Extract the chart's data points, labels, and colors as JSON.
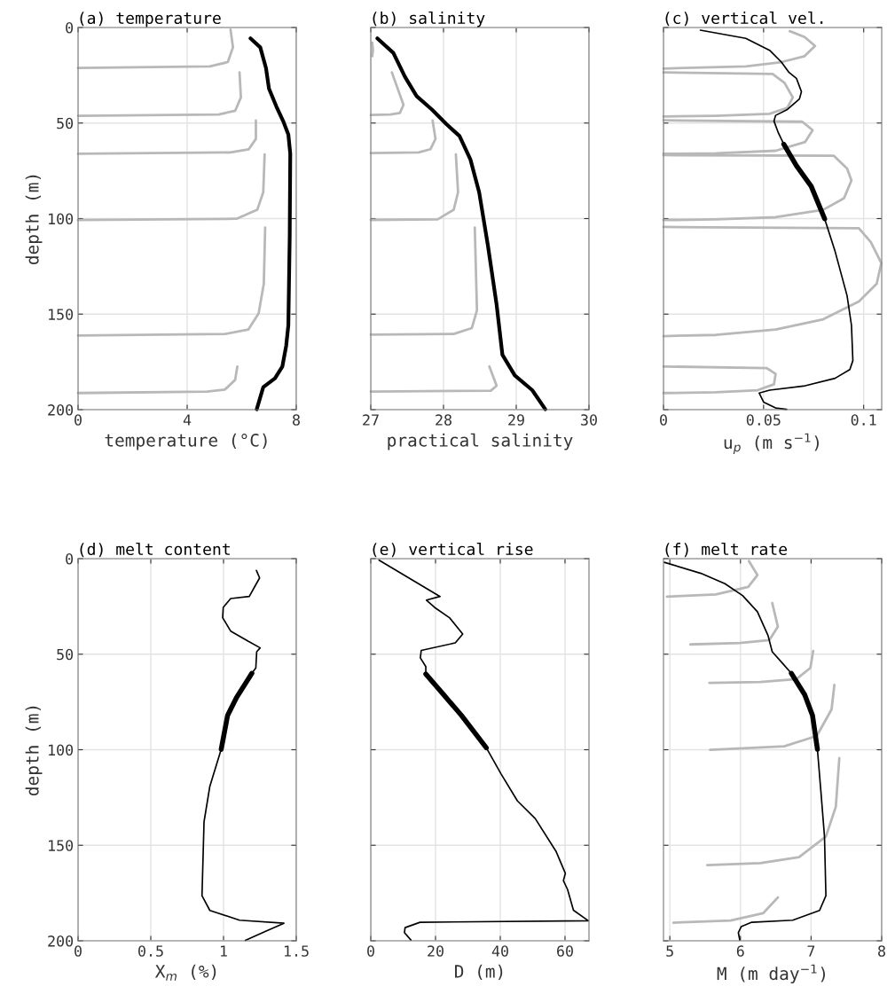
{
  "chart_data": [
    {
      "type": "line",
      "title": "(a) temperature",
      "xlabel": "temperature (°C)",
      "ylabel": "depth (m)",
      "xlim": [
        0,
        8
      ],
      "xticks": [
        0,
        4,
        8
      ],
      "ylim": [
        200,
        0
      ],
      "yticks": [
        0,
        50,
        100,
        150,
        200
      ],
      "grid": true,
      "series": [
        {
          "color": "#b8b8b8",
          "x": [
            5.59,
            5.68,
            5.49,
            4.83,
            0
          ],
          "values": [
            1.1,
            10.4,
            18.1,
            20.4,
            21.2
          ]
        },
        {
          "color": "#b8b8b8",
          "x": [
            5.92,
            5.97,
            5.76,
            5.16,
            0
          ],
          "values": [
            23.5,
            36.6,
            43.6,
            45.5,
            46.2
          ]
        },
        {
          "color": "#b8b8b8",
          "x": [
            6.52,
            6.52,
            6.26,
            5.59,
            0
          ],
          "values": [
            48.7,
            58.3,
            63.7,
            65.4,
            66.1
          ]
        },
        {
          "color": "#b8b8b8",
          "x": [
            6.84,
            6.79,
            6.57,
            5.81,
            0
          ],
          "values": [
            66.4,
            86.2,
            95.4,
            100.1,
            100.8
          ]
        },
        {
          "color": "#b8b8b8",
          "x": [
            6.86,
            6.81,
            6.62,
            6.24,
            5.38,
            0
          ],
          "values": [
            104.7,
            134.1,
            149.6,
            158.1,
            160.4,
            161.2
          ]
        },
        {
          "color": "#b8b8b8",
          "x": [
            5.84,
            5.76,
            5.38,
            4.73,
            0
          ],
          "values": [
            177.4,
            184.4,
            189.5,
            190.5,
            191.3
          ]
        },
        {
          "color": "#000000",
          "x": [
            6.32,
            6.68,
            6.89,
            7.0,
            7.27,
            7.52,
            7.71,
            7.78,
            7.76,
            7.71,
            7.63,
            7.49,
            7.22,
            6.79,
            6.55
          ],
          "values": [
            5.7,
            10.4,
            21.2,
            32.0,
            41.3,
            49.0,
            56.0,
            66.0,
            109,
            155.8,
            166.6,
            177.4,
            183.6,
            188.2,
            199.8
          ]
        }
      ]
    },
    {
      "type": "line",
      "title": "(b) salinity",
      "xlabel": "practical salinity",
      "xlim": [
        27,
        30
      ],
      "xticks": [
        27,
        28,
        29,
        30
      ],
      "ylim": [
        200,
        0
      ],
      "yticks": [
        0,
        50,
        100,
        150,
        200
      ],
      "tick_labels": "x",
      "grid": true,
      "series": [
        {
          "color": "#b8b8b8",
          "x": [
            27.29,
            27.45,
            27.4,
            27.27,
            27.0
          ],
          "values": [
            23.5,
            40.5,
            44.7,
            45.5,
            45.8
          ]
        },
        {
          "color": "#b8b8b8",
          "x": [
            27.85,
            27.89,
            27.82,
            27.66,
            27.0
          ],
          "values": [
            48.7,
            58.3,
            63.7,
            65.4,
            65.7
          ]
        },
        {
          "color": "#b8b8b8",
          "x": [
            28.17,
            28.2,
            28.14,
            27.92,
            27.0
          ],
          "values": [
            66.4,
            86.2,
            95.4,
            100.4,
            100.7
          ]
        },
        {
          "color": "#b8b8b8",
          "x": [
            28.43,
            28.46,
            28.39,
            28.14,
            27.0
          ],
          "values": [
            104.7,
            148,
            157.3,
            160.4,
            160.7
          ]
        },
        {
          "color": "#b8b8b8",
          "x": [
            28.63,
            28.73,
            28.65,
            27.0
          ],
          "values": [
            177.4,
            187.5,
            190.1,
            190.5
          ]
        },
        {
          "color": "#b8b8b8",
          "x": [
            27.02,
            27.03,
            27.02
          ],
          "values": [
            8.0,
            11.9,
            15.0
          ]
        },
        {
          "color": "#000000",
          "x": [
            27.09,
            27.31,
            27.47,
            27.63,
            27.84,
            28.04,
            28.22,
            28.37,
            28.49,
            28.61,
            28.73,
            28.81,
            28.98,
            29.22,
            29.4
          ],
          "values": [
            5.7,
            13.3,
            25.8,
            35.9,
            42.9,
            50.6,
            56.8,
            69.1,
            86.2,
            114.0,
            145,
            171.3,
            182.1,
            189.8,
            199.8
          ]
        }
      ]
    },
    {
      "type": "line",
      "title": "(c) vertical vel.",
      "xlabel": "u$_{p}$ (m s$^{−1}$)",
      "xlim": [
        0,
        0.109
      ],
      "xticks": [
        0,
        0.05,
        0.1
      ],
      "ylim": [
        200,
        0
      ],
      "yticks": [
        0,
        50,
        100,
        150,
        200
      ],
      "tick_labels": "x",
      "grid": true,
      "series": [
        {
          "color": "#b8b8b8",
          "x": [
            0.0631,
            0.0705,
            0.0757,
            0.0705,
            0.0589,
            0.0411,
            0
          ],
          "values": [
            1.9,
            5.0,
            9.6,
            15.0,
            18.1,
            20.4,
            21.5
          ]
        },
        {
          "color": "#b8b8b8",
          "x": [
            0,
            0.0545,
            0.0604,
            0.0646,
            0.0619,
            0.053,
            0.0262,
            0
          ],
          "values": [
            23.5,
            24.3,
            28.9,
            36.6,
            42.0,
            45.2,
            46.2,
            46.6
          ]
        },
        {
          "color": "#b8b8b8",
          "x": [
            0,
            0.0693,
            0.0745,
            0.0708,
            0.056,
            0.0262,
            0
          ],
          "values": [
            48.6,
            49.3,
            53.7,
            59.9,
            64.5,
            65.8,
            66.1
          ]
        },
        {
          "color": "#b8b8b8",
          "x": [
            0,
            0.085,
            0.0917,
            0.0939,
            0.0902,
            0.0798,
            0.056,
            0.0262,
            0
          ],
          "values": [
            66.8,
            67.1,
            73.8,
            80.0,
            89.3,
            95.4,
            99.3,
            100.4,
            100.8
          ]
        },
        {
          "color": "#b8b8b8",
          "x": [
            0,
            0.0976,
            0.1036,
            0.1088,
            0.1065,
            0.0976,
            0.0798,
            0.056,
            0.0262,
            0
          ],
          "values": [
            104.4,
            105.0,
            112.4,
            123.3,
            134.1,
            143.4,
            152.7,
            158.1,
            160.9,
            161.5
          ]
        },
        {
          "color": "#b8b8b8",
          "x": [
            0,
            0.0515,
            0.056,
            0.0552,
            0.047,
            0.0262,
            0
          ],
          "values": [
            177.4,
            178.2,
            181.3,
            186.7,
            189.8,
            190.9,
            191.3
          ]
        },
        {
          "color": "#000000",
          "x": [
            0.0184,
            0.0411,
            0.053,
            0.0589,
            0.0627,
            0.0664,
            0.0689,
            0.0679,
            0.0619,
            0.056,
            0.0552,
            0.0574,
            0.0601
          ],
          "values": [
            1.4,
            5.7,
            11.9,
            18.1,
            23.5,
            26.6,
            33.6,
            37.4,
            42.9,
            46.0,
            49.0,
            55.2,
            61.1
          ]
        },
        {
          "color": "#000000",
          "x": [
            0.0601,
            0.0664,
            0.0738,
            0.0805
          ],
          "values": [
            61.1,
            72.3,
            83.1,
            100.1
          ]
        },
        {
          "color": "#000000",
          "x": [
            0.0805,
            0.0857,
            0.0917,
            0.0939,
            0.0946,
            0.0931,
            0.0857,
            0.0708,
            0.053,
            0.0478,
            0.05,
            0.056,
            0.0615
          ],
          "values": [
            100.1,
            117.1,
            140.3,
            155.8,
            174.3,
            179.0,
            183.6,
            187.5,
            189.8,
            191.3,
            196.0,
            199.1,
            199.8
          ]
        }
      ]
    },
    {
      "type": "line",
      "title": "(d) melt content",
      "xlabel": "X$_{m}$ (%)",
      "ylabel": "depth (m)",
      "xlim": [
        0,
        1.5
      ],
      "xticks": [
        0,
        0.5,
        1,
        1.5
      ],
      "ylim": [
        200,
        0
      ],
      "yticks": [
        0,
        50,
        100,
        150,
        200
      ],
      "grid": true,
      "series": [
        {
          "color": "#000000",
          "x": [
            1.226,
            1.248,
            1.177,
            1.049,
            0.998,
            0.994,
            1.049,
            1.171,
            1.252,
            1.228,
            1.222,
            1.195
          ],
          "values": [
            6.2,
            10.1,
            19.8,
            20.9,
            25.5,
            30.9,
            37.9,
            43.3,
            46.7,
            48.7,
            57.2,
            60.0
          ]
        },
        {
          "color": "#000000",
          "x": [
            1.195,
            1.089,
            1.028,
            0.984
          ],
          "values": [
            60.0,
            72.7,
            82.0,
            99.8
          ]
        },
        {
          "color": "#000000",
          "x": [
            0.984,
            0.906,
            0.866,
            0.852,
            0.906,
            1.11,
            1.415,
            1.293,
            1.15
          ],
          "values": [
            99.8,
            119.1,
            137.7,
            176.4,
            184.1,
            189.2,
            190.8,
            194.9,
            199.8
          ]
        }
      ]
    },
    {
      "type": "line",
      "title": "(e) vertical rise",
      "xlabel": "D (m)",
      "xlim": [
        0,
        67.4
      ],
      "xticks": [
        0,
        20,
        40,
        60
      ],
      "ylim": [
        200,
        0
      ],
      "yticks": [
        0,
        50,
        100,
        150,
        200
      ],
      "tick_labels": "x",
      "grid": true,
      "series": [
        {
          "color": "#000000",
          "x": [
            2.56,
            21.4,
            17.2,
            19.7,
            24.3,
            28.4,
            26.1,
            15.6,
            15.3,
            17.0,
            17.0
          ],
          "values": [
            0.8,
            19.8,
            21.7,
            25.5,
            30.9,
            39.4,
            44.1,
            48.0,
            51.9,
            56.5,
            60.4
          ]
        },
        {
          "color": "#000000",
          "x": [
            17.0,
            22.5,
            28.0,
            35.7
          ],
          "values": [
            60.4,
            71.2,
            82.0,
            99.0
          ]
        },
        {
          "color": "#000000",
          "x": [
            35.7,
            40.3,
            45.3,
            50.8,
            57.2,
            60.1,
            59.5,
            60.8,
            62.6,
            67.2,
            15.2,
            10.6,
            10.4,
            12.4
          ],
          "values": [
            99.0,
            112.8,
            126.8,
            136.0,
            153.1,
            164.7,
            168.5,
            173.2,
            184.0,
            189.5,
            190.3,
            193.1,
            195.7,
            199.6
          ]
        }
      ]
    },
    {
      "type": "line",
      "title": "(f) melt rate",
      "xlabel": "M (m day$^{−1}$)",
      "xlim": [
        4.91,
        8
      ],
      "xticks": [
        5,
        6,
        7,
        8
      ],
      "ylim": [
        200,
        0
      ],
      "yticks": [
        0,
        50,
        100,
        150,
        200
      ],
      "tick_labels": "x",
      "grid": true,
      "series": [
        {
          "color": "#b8b8b8",
          "x": [
            6.12,
            6.24,
            6.11,
            5.65,
            4.96
          ],
          "values": [
            1.3,
            8.6,
            14.8,
            18.7,
            19.9
          ]
        },
        {
          "color": "#b8b8b8",
          "x": [
            6.45,
            6.53,
            6.41,
            5.99,
            5.29
          ],
          "values": [
            23.2,
            35.6,
            42.6,
            44.1,
            44.9
          ]
        },
        {
          "color": "#b8b8b8",
          "x": [
            7.03,
            6.99,
            6.79,
            6.28,
            5.56
          ],
          "values": [
            48.3,
            57.2,
            63.1,
            64.6,
            65.0
          ]
        },
        {
          "color": "#b8b8b8",
          "x": [
            7.33,
            7.29,
            7.08,
            6.62,
            5.57
          ],
          "values": [
            66.1,
            78.9,
            92.8,
            98.2,
            100.1
          ]
        },
        {
          "color": "#b8b8b8",
          "x": [
            7.4,
            7.35,
            7.21,
            6.83,
            6.28,
            5.53
          ],
          "values": [
            104.4,
            129.9,
            145.4,
            156.2,
            159.3,
            160.4
          ]
        },
        {
          "color": "#b8b8b8",
          "x": [
            6.53,
            6.32,
            5.86,
            5.05
          ],
          "values": [
            177.3,
            185.6,
            189.4,
            190.5
          ]
        },
        {
          "color": "#000000",
          "x": [
            4.92,
            5.44,
            5.78,
            6.03,
            6.24,
            6.39,
            6.45,
            6.58,
            6.72
          ],
          "values": [
            1.9,
            7.7,
            13.1,
            19.3,
            27.8,
            40.2,
            48.7,
            54.1,
            60.0
          ]
        },
        {
          "color": "#000000",
          "x": [
            6.72,
            6.91,
            7.02,
            7.09
          ],
          "values": [
            60.0,
            71.2,
            82.0,
            99.8
          ]
        },
        {
          "color": "#000000",
          "x": [
            7.09,
            7.14,
            7.19,
            7.21,
            7.12,
            6.74,
            6.16,
            6.01,
            5.97,
            5.99
          ],
          "values": [
            99.8,
            122.2,
            145.4,
            176.4,
            184.1,
            189.2,
            190.3,
            192.6,
            195.7,
            199.6
          ]
        }
      ]
    }
  ]
}
